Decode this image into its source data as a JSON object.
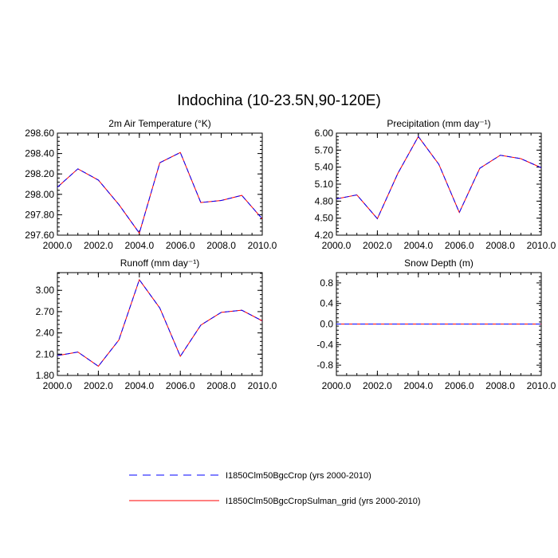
{
  "title": "Indochina (10-23.5N,90-120E)",
  "legend": {
    "placement": "bottom-center",
    "entries": [
      {
        "label": "I1850Clm50BgcCrop (yrs 2000-2010)",
        "color": "#0000ff",
        "style": "dashed"
      },
      {
        "label": "I1850Clm50BgcCropSulman_grid (yrs 2000-2010)",
        "color": "#ff0000",
        "style": "solid"
      }
    ]
  },
  "chart_data": [
    {
      "type": "line",
      "title": "2m Air Temperature (°K)",
      "x": [
        2000,
        2001,
        2002,
        2003,
        2004,
        2005,
        2006,
        2007,
        2008,
        2009,
        2010
      ],
      "xlim": [
        2000,
        2010
      ],
      "xticks": [
        "2000.0",
        "2002.0",
        "2004.0",
        "2006.0",
        "2008.0",
        "2010.0"
      ],
      "ylim": [
        297.6,
        298.6
      ],
      "yticks": [
        "297.60",
        "297.80",
        "298.00",
        "298.20",
        "298.40",
        "298.60"
      ],
      "series": [
        {
          "name": "I1850Clm50BgcCrop (yrs 2000-2010)",
          "values": [
            298.07,
            298.25,
            298.14,
            297.9,
            297.62,
            298.31,
            298.41,
            297.92,
            297.94,
            297.99,
            297.76
          ]
        },
        {
          "name": "I1850Clm50BgcCropSulman_grid (yrs 2000-2010)",
          "values": [
            298.07,
            298.25,
            298.14,
            297.9,
            297.62,
            298.31,
            298.41,
            297.92,
            297.94,
            297.99,
            297.76
          ]
        }
      ]
    },
    {
      "type": "line",
      "title": "Precipitation (mm day⁻¹)",
      "x": [
        2000,
        2001,
        2002,
        2003,
        2004,
        2005,
        2006,
        2007,
        2008,
        2009,
        2010
      ],
      "xlim": [
        2000,
        2010
      ],
      "xticks": [
        "2000.0",
        "2002.0",
        "2004.0",
        "2006.0",
        "2008.0",
        "2010.0"
      ],
      "ylim": [
        4.2,
        6.0
      ],
      "yticks": [
        "4.20",
        "4.50",
        "4.80",
        "5.10",
        "5.40",
        "5.70",
        "6.00"
      ],
      "series": [
        {
          "name": "I1850Clm50BgcCrop (yrs 2000-2010)",
          "values": [
            4.84,
            4.91,
            4.49,
            5.29,
            5.94,
            5.45,
            4.6,
            5.38,
            5.61,
            5.55,
            5.39
          ]
        },
        {
          "name": "I1850Clm50BgcCropSulman_grid (yrs 2000-2010)",
          "values": [
            4.84,
            4.91,
            4.49,
            5.29,
            5.94,
            5.45,
            4.6,
            5.38,
            5.61,
            5.55,
            5.39
          ]
        }
      ]
    },
    {
      "type": "line",
      "title": "Runoff (mm day⁻¹)",
      "x": [
        2000,
        2001,
        2002,
        2003,
        2004,
        2005,
        2006,
        2007,
        2008,
        2009,
        2010
      ],
      "xlim": [
        2000,
        2010
      ],
      "xticks": [
        "2000.0",
        "2002.0",
        "2004.0",
        "2006.0",
        "2008.0",
        "2010.0"
      ],
      "ylim": [
        1.8,
        3.25
      ],
      "yticks": [
        "1.80",
        "2.10",
        "2.40",
        "2.70",
        "3.00"
      ],
      "series": [
        {
          "name": "I1850Clm50BgcCrop (yrs 2000-2010)",
          "values": [
            2.08,
            2.13,
            1.93,
            2.3,
            3.15,
            2.75,
            2.07,
            2.51,
            2.69,
            2.72,
            2.57
          ]
        },
        {
          "name": "I1850Clm50BgcCropSulman_grid (yrs 2000-2010)",
          "values": [
            2.08,
            2.13,
            1.93,
            2.3,
            3.15,
            2.75,
            2.07,
            2.51,
            2.69,
            2.72,
            2.57
          ]
        }
      ]
    },
    {
      "type": "line",
      "title": "Snow Depth (m)",
      "x": [
        2000,
        2001,
        2002,
        2003,
        2004,
        2005,
        2006,
        2007,
        2008,
        2009,
        2010
      ],
      "xlim": [
        2000,
        2010
      ],
      "xticks": [
        "2000.0",
        "2002.0",
        "2004.0",
        "2006.0",
        "2008.0",
        "2010.0"
      ],
      "ylim": [
        -1.0,
        1.0
      ],
      "yticks": [
        "-0.8",
        "-0.4",
        "0.0",
        "0.4",
        "0.8"
      ],
      "series": [
        {
          "name": "I1850Clm50BgcCrop (yrs 2000-2010)",
          "values": [
            0,
            0,
            0,
            0,
            0,
            0,
            0,
            0,
            0,
            0,
            0
          ]
        },
        {
          "name": "I1850Clm50BgcCropSulman_grid (yrs 2000-2010)",
          "values": [
            0,
            0,
            0,
            0,
            0,
            0,
            0,
            0,
            0,
            0,
            0
          ]
        }
      ]
    }
  ]
}
